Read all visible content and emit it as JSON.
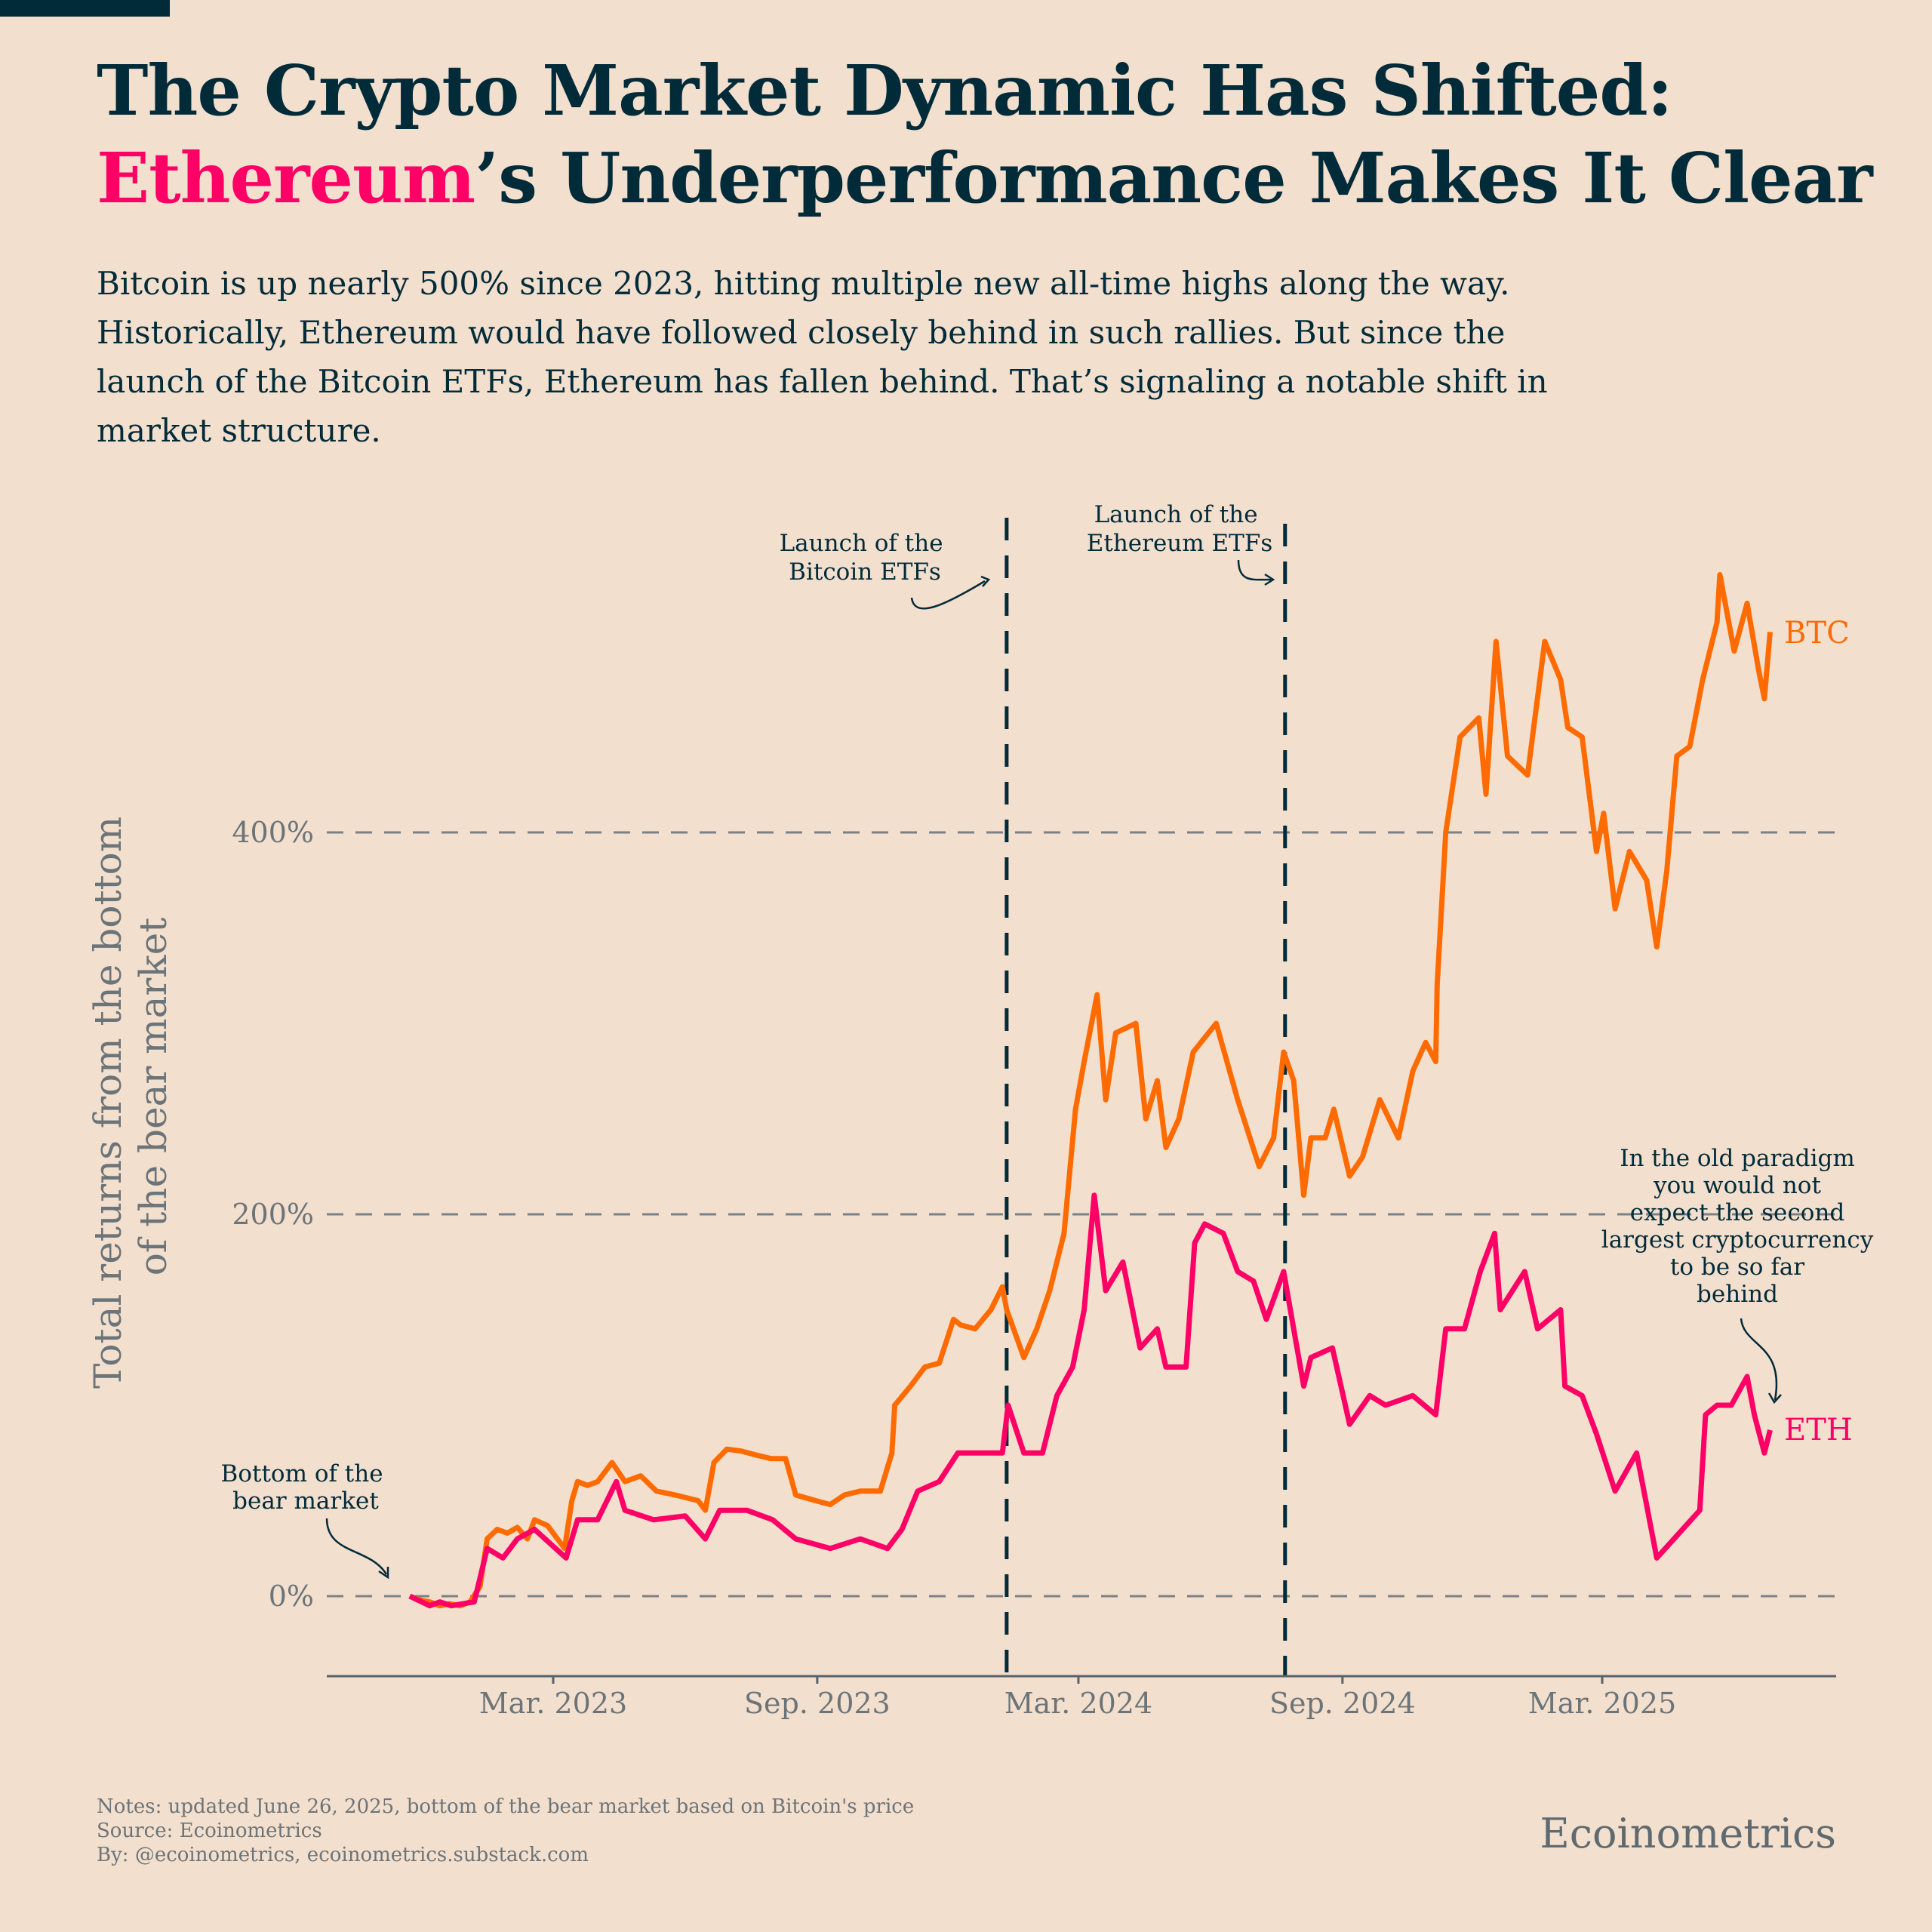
{
  "title": {
    "line1": "The Crypto Market Dynamic Has Shifted:",
    "highlight": "Ethereum",
    "line2_rest": "’s Underperformance Makes It Clear"
  },
  "subtitle": "Bitcoin is up nearly 500% since 2023, hitting multiple new all-time highs along the way. Historically, Ethereum would have followed closely behind in such rallies. But since the launch of the Bitcoin ETFs, Ethereum has fallen behind. That’s signaling a notable shift in market structure.",
  "colors": {
    "background": "#f3dfcd",
    "text": "#022b3a",
    "btc": "#ff6b00",
    "eth": "#ff0066",
    "grid": "#7a8288"
  },
  "chart_data": {
    "type": "line",
    "ylabel": [
      "Total returns from the bottom",
      "of the bear market"
    ],
    "ylim": [
      -40,
      560
    ],
    "yticks": [
      {
        "v": 0,
        "label": "0%"
      },
      {
        "v": 200,
        "label": "200%"
      },
      {
        "v": 400,
        "label": "400%"
      }
    ],
    "xticks": [
      {
        "d": "2023-03-01",
        "label": "Mar. 2023"
      },
      {
        "d": "2023-09-01",
        "label": "Sep. 2023"
      },
      {
        "d": "2024-03-01",
        "label": "Mar. 2024"
      },
      {
        "d": "2024-09-01",
        "label": "Sep. 2024"
      },
      {
        "d": "2025-03-01",
        "label": "Mar. 2025"
      }
    ],
    "grid": "horizontal dashed",
    "events": [
      {
        "date": "2024-01-11",
        "label": [
          "Launch of the",
          "Bitcoin ETFs"
        ]
      },
      {
        "date": "2024-07-23",
        "label": [
          "Launch of the",
          "Ethereum ETFs"
        ]
      }
    ],
    "annotations": {
      "bottom": [
        "Bottom of the",
        "bear market"
      ],
      "paradigm": [
        "In the old paradigm",
        "you would not",
        "expect the second",
        "largest cryptocurrency",
        "to be so far",
        "behind"
      ]
    },
    "series": [
      {
        "name": "BTC",
        "color": "#ff6b00",
        "points": [
          [
            "2022-11-21",
            0
          ],
          [
            "2022-11-28",
            -2
          ],
          [
            "2022-12-05",
            -3
          ],
          [
            "2022-12-12",
            -5
          ],
          [
            "2022-12-19",
            -4
          ],
          [
            "2022-12-26",
            -5
          ],
          [
            "2023-01-02",
            -3
          ],
          [
            "2023-01-09",
            5
          ],
          [
            "2023-01-14",
            30
          ],
          [
            "2023-01-21",
            35
          ],
          [
            "2023-01-28",
            33
          ],
          [
            "2023-02-04",
            36
          ],
          [
            "2023-02-11",
            30
          ],
          [
            "2023-02-16",
            40
          ],
          [
            "2023-02-25",
            37
          ],
          [
            "2023-03-09",
            25
          ],
          [
            "2023-03-14",
            50
          ],
          [
            "2023-03-18",
            60
          ],
          [
            "2023-03-25",
            58
          ],
          [
            "2023-04-01",
            60
          ],
          [
            "2023-04-11",
            70
          ],
          [
            "2023-04-20",
            60
          ],
          [
            "2023-05-01",
            63
          ],
          [
            "2023-05-12",
            55
          ],
          [
            "2023-05-25",
            53
          ],
          [
            "2023-06-10",
            50
          ],
          [
            "2023-06-15",
            45
          ],
          [
            "2023-06-21",
            70
          ],
          [
            "2023-06-30",
            77
          ],
          [
            "2023-07-10",
            76
          ],
          [
            "2023-07-20",
            74
          ],
          [
            "2023-07-31",
            72
          ],
          [
            "2023-08-10",
            72
          ],
          [
            "2023-08-17",
            53
          ],
          [
            "2023-08-31",
            50
          ],
          [
            "2023-09-10",
            48
          ],
          [
            "2023-09-20",
            53
          ],
          [
            "2023-10-01",
            55
          ],
          [
            "2023-10-15",
            55
          ],
          [
            "2023-10-23",
            75
          ],
          [
            "2023-10-25",
            100
          ],
          [
            "2023-11-05",
            110
          ],
          [
            "2023-11-15",
            120
          ],
          [
            "2023-11-25",
            122
          ],
          [
            "2023-12-05",
            145
          ],
          [
            "2023-12-10",
            142
          ],
          [
            "2023-12-20",
            140
          ],
          [
            "2023-12-31",
            150
          ],
          [
            "2024-01-08",
            162
          ],
          [
            "2024-01-11",
            150
          ],
          [
            "2024-01-23",
            125
          ],
          [
            "2024-02-01",
            140
          ],
          [
            "2024-02-10",
            160
          ],
          [
            "2024-02-20",
            190
          ],
          [
            "2024-02-28",
            255
          ],
          [
            "2024-03-05",
            280
          ],
          [
            "2024-03-14",
            315
          ],
          [
            "2024-03-20",
            260
          ],
          [
            "2024-03-27",
            295
          ],
          [
            "2024-04-10",
            300
          ],
          [
            "2024-04-17",
            250
          ],
          [
            "2024-04-25",
            270
          ],
          [
            "2024-05-01",
            235
          ],
          [
            "2024-05-10",
            250
          ],
          [
            "2024-05-20",
            285
          ],
          [
            "2024-06-05",
            300
          ],
          [
            "2024-06-20",
            260
          ],
          [
            "2024-07-05",
            225
          ],
          [
            "2024-07-15",
            240
          ],
          [
            "2024-07-22",
            285
          ],
          [
            "2024-07-29",
            270
          ],
          [
            "2024-08-05",
            210
          ],
          [
            "2024-08-10",
            240
          ],
          [
            "2024-08-20",
            240
          ],
          [
            "2024-08-26",
            255
          ],
          [
            "2024-09-06",
            220
          ],
          [
            "2024-09-15",
            230
          ],
          [
            "2024-09-27",
            260
          ],
          [
            "2024-10-10",
            240
          ],
          [
            "2024-10-20",
            275
          ],
          [
            "2024-10-29",
            290
          ],
          [
            "2024-11-05",
            280
          ],
          [
            "2024-11-06",
            320
          ],
          [
            "2024-11-12",
            400
          ],
          [
            "2024-11-22",
            450
          ],
          [
            "2024-12-05",
            460
          ],
          [
            "2024-12-10",
            420
          ],
          [
            "2024-12-17",
            500
          ],
          [
            "2024-12-25",
            440
          ],
          [
            "2025-01-08",
            430
          ],
          [
            "2025-01-20",
            500
          ],
          [
            "2025-01-31",
            480
          ],
          [
            "2025-02-05",
            455
          ],
          [
            "2025-02-15",
            450
          ],
          [
            "2025-02-25",
            390
          ],
          [
            "2025-03-02",
            410
          ],
          [
            "2025-03-10",
            360
          ],
          [
            "2025-03-20",
            390
          ],
          [
            "2025-04-01",
            375
          ],
          [
            "2025-04-08",
            340
          ],
          [
            "2025-04-15",
            380
          ],
          [
            "2025-04-22",
            440
          ],
          [
            "2025-05-01",
            445
          ],
          [
            "2025-05-10",
            480
          ],
          [
            "2025-05-20",
            510
          ],
          [
            "2025-05-22",
            535
          ],
          [
            "2025-06-01",
            495
          ],
          [
            "2025-06-10",
            520
          ],
          [
            "2025-06-18",
            485
          ],
          [
            "2025-06-22",
            470
          ],
          [
            "2025-06-26",
            505
          ]
        ]
      },
      {
        "name": "ETH",
        "color": "#ff0066",
        "points": [
          [
            "2022-11-21",
            0
          ],
          [
            "2022-12-05",
            -5
          ],
          [
            "2022-12-12",
            -3
          ],
          [
            "2022-12-20",
            -5
          ],
          [
            "2023-01-05",
            -3
          ],
          [
            "2023-01-14",
            25
          ],
          [
            "2023-01-25",
            20
          ],
          [
            "2023-02-04",
            30
          ],
          [
            "2023-02-16",
            35
          ],
          [
            "2023-03-10",
            20
          ],
          [
            "2023-03-18",
            40
          ],
          [
            "2023-04-01",
            40
          ],
          [
            "2023-04-14",
            60
          ],
          [
            "2023-04-20",
            45
          ],
          [
            "2023-05-10",
            40
          ],
          [
            "2023-06-01",
            42
          ],
          [
            "2023-06-15",
            30
          ],
          [
            "2023-06-25",
            45
          ],
          [
            "2023-07-14",
            45
          ],
          [
            "2023-08-01",
            40
          ],
          [
            "2023-08-17",
            30
          ],
          [
            "2023-09-10",
            25
          ],
          [
            "2023-10-01",
            30
          ],
          [
            "2023-10-20",
            25
          ],
          [
            "2023-10-30",
            35
          ],
          [
            "2023-11-10",
            55
          ],
          [
            "2023-11-25",
            60
          ],
          [
            "2023-12-08",
            75
          ],
          [
            "2023-12-28",
            75
          ],
          [
            "2024-01-08",
            75
          ],
          [
            "2024-01-12",
            100
          ],
          [
            "2024-01-23",
            75
          ],
          [
            "2024-02-05",
            75
          ],
          [
            "2024-02-15",
            105
          ],
          [
            "2024-02-26",
            120
          ],
          [
            "2024-03-05",
            150
          ],
          [
            "2024-03-12",
            210
          ],
          [
            "2024-03-20",
            160
          ],
          [
            "2024-04-01",
            175
          ],
          [
            "2024-04-13",
            130
          ],
          [
            "2024-04-25",
            140
          ],
          [
            "2024-05-01",
            120
          ],
          [
            "2024-05-15",
            120
          ],
          [
            "2024-05-21",
            185
          ],
          [
            "2024-05-28",
            195
          ],
          [
            "2024-06-10",
            190
          ],
          [
            "2024-06-20",
            170
          ],
          [
            "2024-07-01",
            165
          ],
          [
            "2024-07-10",
            145
          ],
          [
            "2024-07-22",
            170
          ],
          [
            "2024-08-05",
            110
          ],
          [
            "2024-08-10",
            125
          ],
          [
            "2024-08-25",
            130
          ],
          [
            "2024-09-06",
            90
          ],
          [
            "2024-09-20",
            105
          ],
          [
            "2024-10-01",
            100
          ],
          [
            "2024-10-20",
            105
          ],
          [
            "2024-11-05",
            95
          ],
          [
            "2024-11-12",
            140
          ],
          [
            "2024-11-25",
            140
          ],
          [
            "2024-12-06",
            170
          ],
          [
            "2024-12-16",
            190
          ],
          [
            "2024-12-20",
            150
          ],
          [
            "2025-01-06",
            170
          ],
          [
            "2025-01-15",
            140
          ],
          [
            "2025-01-31",
            150
          ],
          [
            "2025-02-03",
            110
          ],
          [
            "2025-02-15",
            105
          ],
          [
            "2025-02-25",
            85
          ],
          [
            "2025-03-10",
            55
          ],
          [
            "2025-03-25",
            75
          ],
          [
            "2025-04-08",
            20
          ],
          [
            "2025-04-20",
            30
          ],
          [
            "2025-05-08",
            45
          ],
          [
            "2025-05-12",
            95
          ],
          [
            "2025-05-20",
            100
          ],
          [
            "2025-05-30",
            100
          ],
          [
            "2025-06-10",
            115
          ],
          [
            "2025-06-15",
            95
          ],
          [
            "2025-06-22",
            75
          ],
          [
            "2025-06-26",
            87
          ]
        ]
      }
    ]
  },
  "footer": {
    "notes": "Notes: updated June 26, 2025, bottom of the bear market based on Bitcoin's price",
    "source": "Source: Ecoinometrics",
    "by": "By: @ecoinometrics, ecoinometrics.substack.com"
  },
  "logo": "Ecoinometrics"
}
